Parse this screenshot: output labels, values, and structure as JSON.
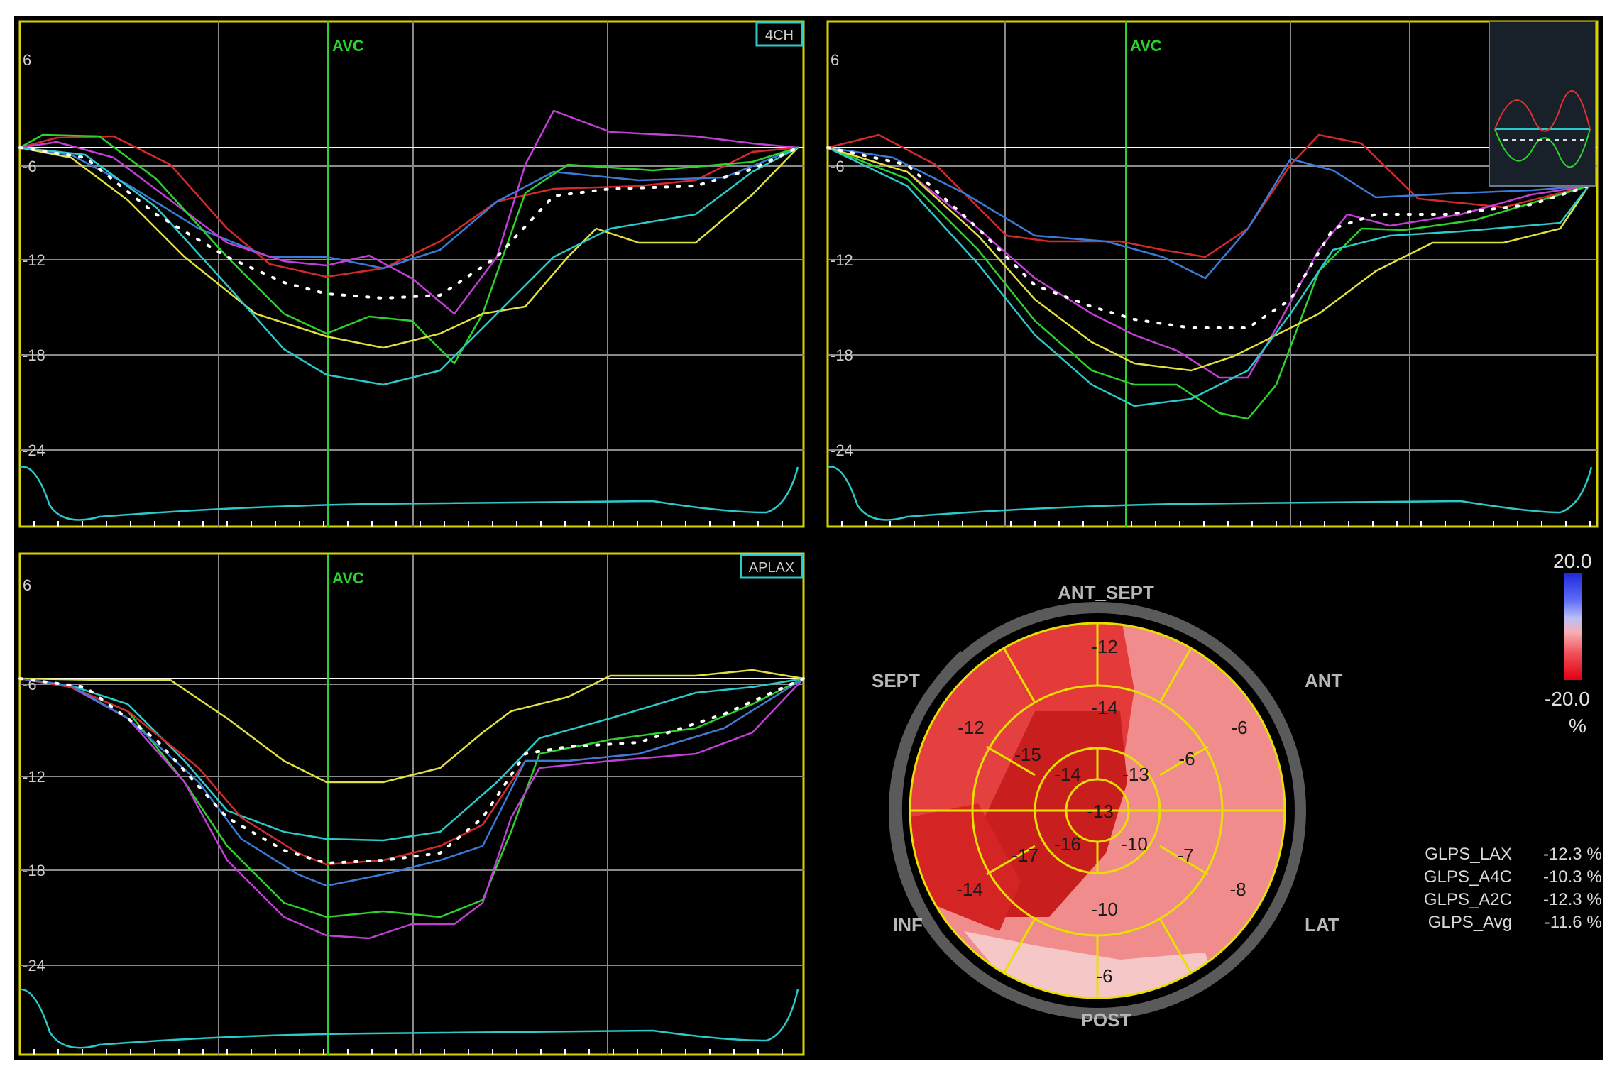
{
  "panels": [
    {
      "id": "4ch",
      "view_label": "4CH",
      "event_label": "AVC",
      "y_ticks": [
        "6",
        "-6",
        "-12",
        "-18",
        "-24"
      ]
    },
    {
      "id": "2ch",
      "view_label": "",
      "event_label": "AVC",
      "y_ticks": [
        "6",
        "-6",
        "-12",
        "-18",
        "-24"
      ]
    },
    {
      "id": "aplax",
      "view_label": "APLAX",
      "event_label": "AVC",
      "y_ticks": [
        "6",
        "-6",
        "-12",
        "-18",
        "-24"
      ]
    }
  ],
  "bullseye": {
    "wall_labels": {
      "ant_sept": "ANT_SEPT",
      "ant": "ANT",
      "lat": "LAT",
      "post": "POST",
      "inf": "INF",
      "sept": "SEPT"
    },
    "basal": [
      "-12",
      "-6",
      "-8",
      "-6",
      "-14",
      "-12"
    ],
    "mid": [
      "-14",
      "-6",
      "-7",
      "-10",
      "-17",
      "-15"
    ],
    "apical": [
      "-13",
      "-10",
      "-16",
      "-14"
    ],
    "apex": "-13"
  },
  "color_scale": {
    "max": "20.0",
    "min": "-20.0",
    "unit": "%"
  },
  "metrics": [
    {
      "key": "GLPS_LAX",
      "value": "-12.3 %"
    },
    {
      "key": "GLPS_A4C",
      "value": "-10.3 %"
    },
    {
      "key": "GLPS_A2C",
      "value": "-12.3 %"
    },
    {
      "key": "GLPS_Avg",
      "value": "-11.6 %"
    }
  ],
  "colors": {
    "grid": "#8a8a8a",
    "frame": "#d8d300",
    "avc_line": "#2dd22d",
    "zero_line": "#ffffff",
    "ecg": "#2bc9c9"
  }
}
